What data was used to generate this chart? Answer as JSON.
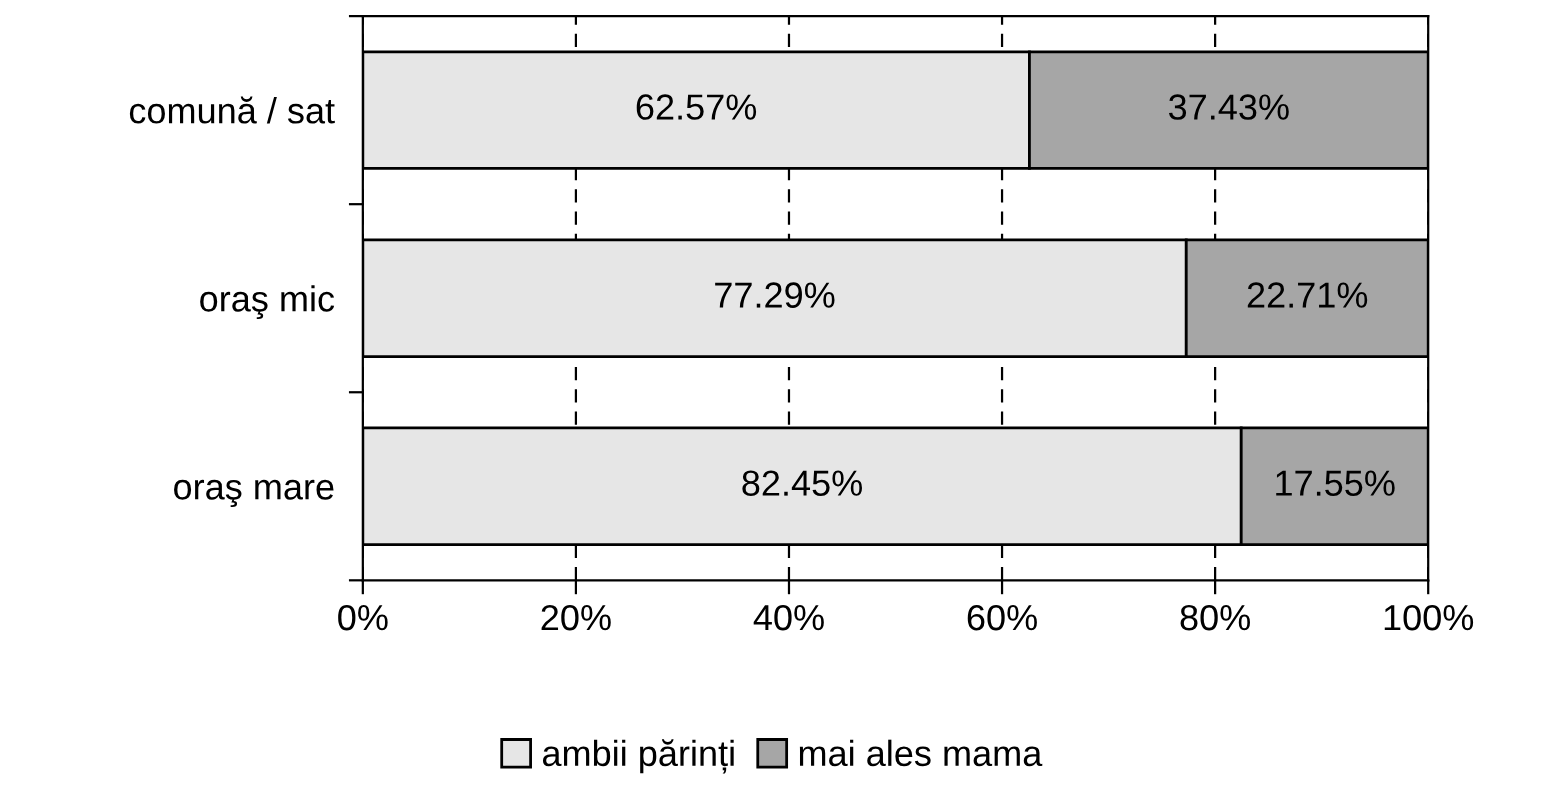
{
  "chart_data": {
    "type": "bar",
    "orientation": "horizontal",
    "stacked": true,
    "categories": [
      "comună / sat",
      "oraş mic",
      "oraş mare"
    ],
    "series": [
      {
        "name": "ambii părinți",
        "color": "#e6e6e6",
        "values": [
          62.57,
          77.29,
          82.45
        ],
        "value_labels": [
          "62.57%",
          "77.29%",
          "82.45%"
        ]
      },
      {
        "name": "mai ales mama",
        "color": "#a6a6a6",
        "values": [
          37.43,
          22.71,
          17.55
        ],
        "value_labels": [
          "37.43%",
          "22.71%",
          "17.55%"
        ]
      }
    ],
    "xlim": [
      0,
      100
    ],
    "xticks": [
      {
        "value": 0,
        "label": "0%"
      },
      {
        "value": 20,
        "label": "20%"
      },
      {
        "value": 40,
        "label": "40%"
      },
      {
        "value": 60,
        "label": "60%"
      },
      {
        "value": 80,
        "label": "80%"
      },
      {
        "value": 100,
        "label": "100%"
      }
    ],
    "grid": "x",
    "legend": "bottom"
  }
}
